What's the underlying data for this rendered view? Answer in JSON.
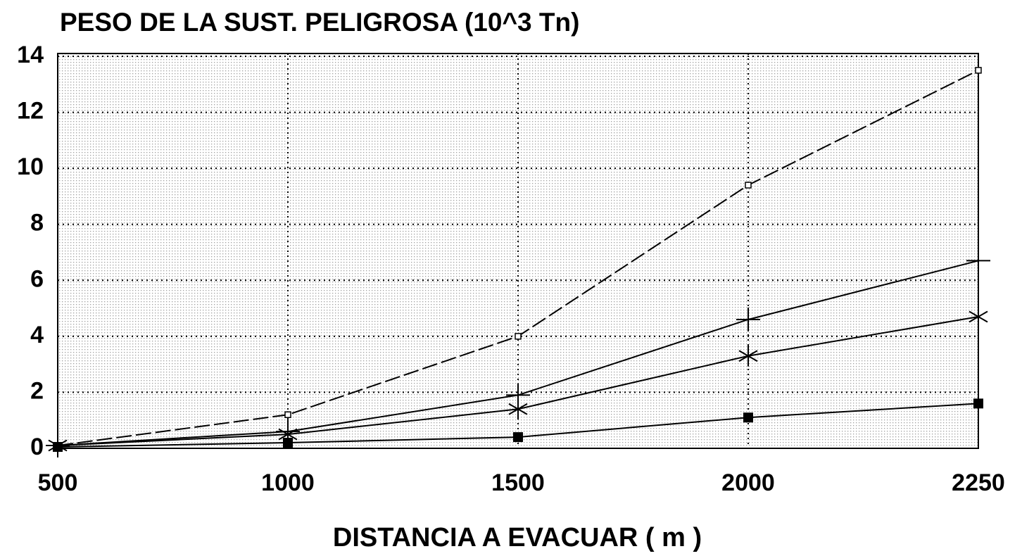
{
  "chart_data": {
    "type": "line",
    "title": "PESO DE LA SUST. PELIGROSA (10^3 Tn)",
    "x_label": "DISTANCIA A EVACUAR ( m )",
    "categories": [
      "500",
      "1000",
      "1500",
      "2000",
      "2250"
    ],
    "series": [
      {
        "color": "#000000",
        "marker": "open-square",
        "dashed": true,
        "values": [
          0.1,
          1.2,
          4.0,
          9.4,
          13.5
        ]
      },
      {
        "color": "#000000",
        "marker": "plus",
        "dashed": false,
        "values": [
          0.1,
          0.6,
          1.9,
          4.6,
          6.7
        ]
      },
      {
        "color": "#000000",
        "marker": "asterisk",
        "dashed": false,
        "values": [
          0.1,
          0.5,
          1.4,
          3.3,
          4.7
        ]
      },
      {
        "color": "#000000",
        "marker": "filled-square",
        "dashed": false,
        "values": [
          0.05,
          0.2,
          0.4,
          1.1,
          1.6
        ]
      }
    ],
    "ylim": [
      0,
      14
    ],
    "yticks": [
      0,
      2,
      4,
      6,
      8,
      10,
      12,
      14
    ],
    "grid": true
  }
}
